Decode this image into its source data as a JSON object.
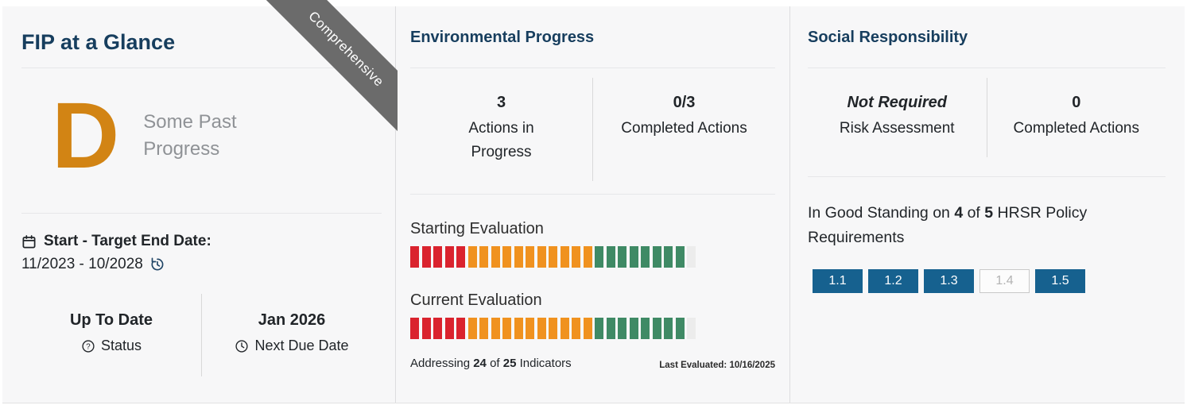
{
  "overview": {
    "title": "FIP at a Glance",
    "ribbon_label": "Comprehensive",
    "grade": "D",
    "grade_description": "Some Past Progress",
    "date_label": "Start - Target End Date:",
    "date_value": "11/2023 - 10/2028",
    "status_value": "Up To Date",
    "status_label": "Status",
    "next_due_value": "Jan 2026",
    "next_due_label": "Next Due Date"
  },
  "environmental": {
    "title": "Environmental Progress",
    "actions_in_progress_value": "3",
    "actions_in_progress_label": "Actions in Progress",
    "completed_value": "0/3",
    "completed_label": "Completed Actions",
    "evaluations": [
      {
        "label": "Starting Evaluation",
        "segments": [
          {
            "state": "red",
            "count": 5
          },
          {
            "state": "orange",
            "count": 11
          },
          {
            "state": "green",
            "count": 8
          },
          {
            "state": "empty",
            "count": 1
          }
        ]
      },
      {
        "label": "Current Evaluation",
        "segments": [
          {
            "state": "red",
            "count": 5
          },
          {
            "state": "orange",
            "count": 11
          },
          {
            "state": "green",
            "count": 8
          },
          {
            "state": "empty",
            "count": 1
          }
        ]
      }
    ],
    "addressing": {
      "pre": "Addressing ",
      "count": "24",
      "mid": " of ",
      "total": "25",
      "post": " Indicators"
    },
    "last_evaluated": "Last Evaluated: 10/16/2025"
  },
  "social": {
    "title": "Social Responsibility",
    "risk_value": "Not Required",
    "risk_label": "Risk Assessment",
    "completed_value": "0",
    "completed_label": "Completed Actions",
    "standing": {
      "pre": "In Good Standing on ",
      "count": "4",
      "mid": " of ",
      "total": "5",
      "post": " HRSR Policy Requirements"
    },
    "badges": [
      {
        "label": "1.1",
        "in_good_standing": true
      },
      {
        "label": "1.2",
        "in_good_standing": true
      },
      {
        "label": "1.3",
        "in_good_standing": true
      },
      {
        "label": "1.4",
        "in_good_standing": false
      },
      {
        "label": "1.5",
        "in_good_standing": true
      }
    ]
  },
  "icons": {
    "date": "calendar-icon",
    "date_refresh": "history-icon",
    "status_help": "question-circle-icon",
    "next_due": "clock-icon"
  },
  "colors": {
    "title_navy": "#173e5e",
    "grade_orange": "#d28414",
    "ribbon_gray": "#6b6b6b",
    "muted_gray": "#8f9296",
    "bar_red": "#da232e",
    "bar_orange": "#f0921f",
    "bar_green": "#3f8a65",
    "bar_unaddressed": "#ececec",
    "badge_blue": "#16618f",
    "panel_background": "#f7f7f8"
  }
}
